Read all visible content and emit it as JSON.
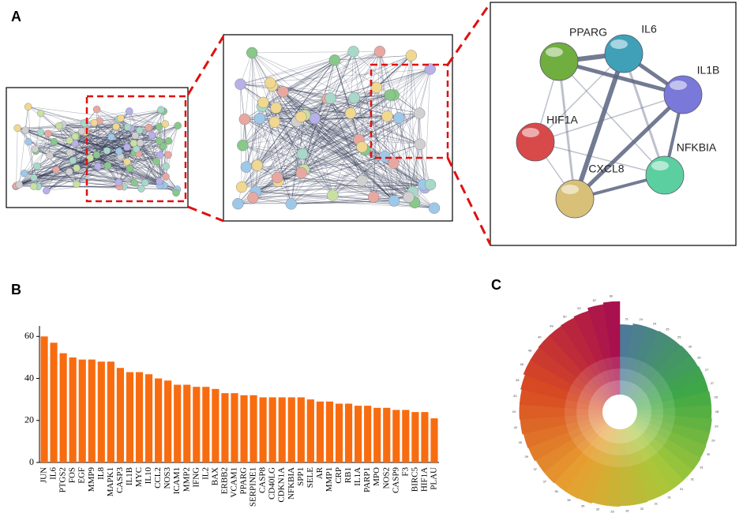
{
  "panel_labels": [
    "A",
    "B",
    "C"
  ],
  "network": {
    "nodes": [
      {
        "label": "PPARG",
        "color": "#6fae3f"
      },
      {
        "label": "IL6",
        "color": "#3fa0b8"
      },
      {
        "label": "IL1B",
        "color": "#7a78d8"
      },
      {
        "label": "HIF1A",
        "color": "#d84a4a"
      },
      {
        "label": "NFKBIA",
        "color": "#5ccfa0"
      },
      {
        "label": "CXCL8",
        "color": "#d8c078"
      }
    ]
  },
  "chart_data": [
    {
      "type": "bar",
      "color": "#f86c10",
      "categories": [
        "JUN",
        "IL6",
        "PTGS2",
        "FOS",
        "EGF",
        "MMP9",
        "IL8",
        "MAPK1",
        "CASP3",
        "IL1B",
        "MYC",
        "IL10",
        "CCL2",
        "NOS3",
        "ICAM1",
        "MMP2",
        "IFNG",
        "IL2",
        "BAX",
        "ERBB2",
        "VCAM1",
        "PPARG",
        "SERPINE1",
        "CASP8",
        "CD40LG",
        "CDKN1A",
        "NFKBIA",
        "SPP1",
        "SELE",
        "AR",
        "MMP1",
        "CRP",
        "RB1",
        "IL1A",
        "PARP1",
        "MPO",
        "NOS2",
        "CASP9",
        "F3",
        "BIRC5",
        "HIF1A",
        "PLAU"
      ],
      "values": [
        60,
        57,
        52,
        50,
        49,
        49,
        48,
        48,
        45,
        43,
        43,
        42,
        40,
        39,
        37,
        37,
        36,
        36,
        35,
        33,
        33,
        32,
        32,
        31,
        31,
        31,
        31,
        31,
        30,
        29,
        29,
        28,
        28,
        27,
        27,
        26,
        26,
        25,
        25,
        24,
        24,
        21
      ],
      "ylim": [
        0,
        65
      ],
      "yticks": [
        0,
        20,
        40,
        60
      ]
    },
    {
      "type": "radial-bar",
      "colors": [
        "#4d7a96",
        "#3ea845",
        "#a8c83a",
        "#e8a030",
        "#d84a22",
        "#a8104e"
      ],
      "values": [
        21,
        24,
        24,
        25,
        25,
        26,
        26,
        27,
        27,
        28,
        28,
        29,
        29,
        30,
        31,
        31,
        31,
        31,
        31,
        32,
        32,
        33,
        33,
        35,
        36,
        36,
        37,
        37,
        39,
        40,
        42,
        43,
        43,
        45,
        48,
        48,
        49,
        49,
        50,
        52,
        57,
        60
      ]
    }
  ]
}
